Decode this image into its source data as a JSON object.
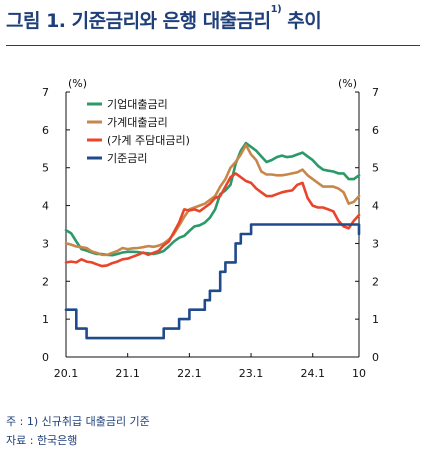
{
  "title": {
    "main": "그림 1. 기준금리와 은행 대출금리",
    "sup": "1)",
    "tail": " 추이"
  },
  "notes": {
    "note1": "주 : 1) 신규취급 대출금리 기준",
    "source": "자료 : 한국은행"
  },
  "chart_data": {
    "type": "line",
    "title": "",
    "xlabel": "",
    "ylabel_left": "(%)",
    "ylabel_right": "(%)",
    "ylim": [
      0,
      7
    ],
    "yticks": [
      "0",
      "1",
      "2",
      "3",
      "4",
      "5",
      "6",
      "7"
    ],
    "x_range": [
      "2020-01",
      "2024-10"
    ],
    "xtick_labels": [
      {
        "date": "2020-01",
        "label": "20.1"
      },
      {
        "date": "2021-01",
        "label": "21.1"
      },
      {
        "date": "2022-01",
        "label": "22.1"
      },
      {
        "date": "2023-01",
        "label": "23.1"
      },
      {
        "date": "2024-01",
        "label": "24.1"
      },
      {
        "date": "2024-10",
        "label": "10"
      }
    ],
    "legend_position": "top-left",
    "series": [
      {
        "name": "기업대출금리",
        "color": "#2a9a6a",
        "step": false,
        "points": [
          [
            "2020-01",
            3.35
          ],
          [
            "2020-02",
            3.27
          ],
          [
            "2020-03",
            3.05
          ],
          [
            "2020-04",
            2.85
          ],
          [
            "2020-05",
            2.81
          ],
          [
            "2020-06",
            2.76
          ],
          [
            "2020-07",
            2.72
          ],
          [
            "2020-08",
            2.72
          ],
          [
            "2020-09",
            2.7
          ],
          [
            "2020-10",
            2.69
          ],
          [
            "2020-11",
            2.72
          ],
          [
            "2020-12",
            2.76
          ],
          [
            "2021-01",
            2.78
          ],
          [
            "2021-02",
            2.78
          ],
          [
            "2021-03",
            2.77
          ],
          [
            "2021-04",
            2.75
          ],
          [
            "2021-05",
            2.74
          ],
          [
            "2021-06",
            2.72
          ],
          [
            "2021-07",
            2.75
          ],
          [
            "2021-08",
            2.8
          ],
          [
            "2021-09",
            2.92
          ],
          [
            "2021-10",
            3.05
          ],
          [
            "2021-11",
            3.15
          ],
          [
            "2021-12",
            3.2
          ],
          [
            "2022-01",
            3.33
          ],
          [
            "2022-02",
            3.45
          ],
          [
            "2022-03",
            3.48
          ],
          [
            "2022-04",
            3.55
          ],
          [
            "2022-05",
            3.68
          ],
          [
            "2022-06",
            3.9
          ],
          [
            "2022-07",
            4.3
          ],
          [
            "2022-08",
            4.4
          ],
          [
            "2022-09",
            4.55
          ],
          [
            "2022-10",
            5.1
          ],
          [
            "2022-11",
            5.45
          ],
          [
            "2022-12",
            5.65
          ],
          [
            "2023-01",
            5.55
          ],
          [
            "2023-02",
            5.45
          ],
          [
            "2023-03",
            5.3
          ],
          [
            "2023-04",
            5.15
          ],
          [
            "2023-05",
            5.2
          ],
          [
            "2023-06",
            5.28
          ],
          [
            "2023-07",
            5.32
          ],
          [
            "2023-08",
            5.28
          ],
          [
            "2023-09",
            5.3
          ],
          [
            "2023-10",
            5.35
          ],
          [
            "2023-11",
            5.4
          ],
          [
            "2023-12",
            5.3
          ],
          [
            "2024-01",
            5.2
          ],
          [
            "2024-02",
            5.05
          ],
          [
            "2024-03",
            4.95
          ],
          [
            "2024-04",
            4.92
          ],
          [
            "2024-05",
            4.9
          ],
          [
            "2024-06",
            4.85
          ],
          [
            "2024-07",
            4.85
          ],
          [
            "2024-08",
            4.7
          ],
          [
            "2024-09",
            4.7
          ],
          [
            "2024-10",
            4.8
          ]
        ]
      },
      {
        "name": "가계대출금리",
        "color": "#c8874a",
        "step": false,
        "points": [
          [
            "2020-01",
            3.0
          ],
          [
            "2020-02",
            2.97
          ],
          [
            "2020-03",
            2.92
          ],
          [
            "2020-04",
            2.9
          ],
          [
            "2020-05",
            2.88
          ],
          [
            "2020-06",
            2.79
          ],
          [
            "2020-07",
            2.75
          ],
          [
            "2020-08",
            2.7
          ],
          [
            "2020-09",
            2.7
          ],
          [
            "2020-10",
            2.75
          ],
          [
            "2020-11",
            2.8
          ],
          [
            "2020-12",
            2.88
          ],
          [
            "2021-01",
            2.85
          ],
          [
            "2021-02",
            2.87
          ],
          [
            "2021-03",
            2.88
          ],
          [
            "2021-04",
            2.9
          ],
          [
            "2021-05",
            2.93
          ],
          [
            "2021-06",
            2.91
          ],
          [
            "2021-07",
            2.94
          ],
          [
            "2021-08",
            3.0
          ],
          [
            "2021-09",
            3.1
          ],
          [
            "2021-10",
            3.25
          ],
          [
            "2021-11",
            3.47
          ],
          [
            "2021-12",
            3.7
          ],
          [
            "2022-01",
            3.9
          ],
          [
            "2022-02",
            3.95
          ],
          [
            "2022-03",
            4.0
          ],
          [
            "2022-04",
            4.05
          ],
          [
            "2022-05",
            4.15
          ],
          [
            "2022-06",
            4.25
          ],
          [
            "2022-07",
            4.5
          ],
          [
            "2022-08",
            4.7
          ],
          [
            "2022-09",
            5.0
          ],
          [
            "2022-10",
            5.15
          ],
          [
            "2022-11",
            5.35
          ],
          [
            "2022-12",
            5.6
          ],
          [
            "2023-01",
            5.35
          ],
          [
            "2023-02",
            5.2
          ],
          [
            "2023-03",
            4.9
          ],
          [
            "2023-04",
            4.82
          ],
          [
            "2023-05",
            4.82
          ],
          [
            "2023-06",
            4.8
          ],
          [
            "2023-07",
            4.8
          ],
          [
            "2023-08",
            4.82
          ],
          [
            "2023-09",
            4.85
          ],
          [
            "2023-10",
            4.88
          ],
          [
            "2023-11",
            4.95
          ],
          [
            "2023-12",
            4.8
          ],
          [
            "2024-01",
            4.7
          ],
          [
            "2024-02",
            4.6
          ],
          [
            "2024-03",
            4.5
          ],
          [
            "2024-04",
            4.5
          ],
          [
            "2024-05",
            4.5
          ],
          [
            "2024-06",
            4.45
          ],
          [
            "2024-07",
            4.35
          ],
          [
            "2024-08",
            4.05
          ],
          [
            "2024-09",
            4.1
          ],
          [
            "2024-10",
            4.25
          ]
        ]
      },
      {
        "name": "(가계 주담대금리)",
        "color": "#e8452a",
        "step": false,
        "points": [
          [
            "2020-01",
            2.5
          ],
          [
            "2020-02",
            2.52
          ],
          [
            "2020-03",
            2.5
          ],
          [
            "2020-04",
            2.58
          ],
          [
            "2020-05",
            2.52
          ],
          [
            "2020-06",
            2.5
          ],
          [
            "2020-07",
            2.45
          ],
          [
            "2020-08",
            2.4
          ],
          [
            "2020-09",
            2.42
          ],
          [
            "2020-10",
            2.48
          ],
          [
            "2020-11",
            2.52
          ],
          [
            "2020-12",
            2.58
          ],
          [
            "2021-01",
            2.6
          ],
          [
            "2021-02",
            2.65
          ],
          [
            "2021-03",
            2.7
          ],
          [
            "2021-04",
            2.76
          ],
          [
            "2021-05",
            2.7
          ],
          [
            "2021-06",
            2.75
          ],
          [
            "2021-07",
            2.8
          ],
          [
            "2021-08",
            2.95
          ],
          [
            "2021-09",
            3.05
          ],
          [
            "2021-10",
            3.3
          ],
          [
            "2021-11",
            3.55
          ],
          [
            "2021-12",
            3.9
          ],
          [
            "2022-01",
            3.87
          ],
          [
            "2022-02",
            3.9
          ],
          [
            "2022-03",
            3.85
          ],
          [
            "2022-04",
            3.95
          ],
          [
            "2022-05",
            4.05
          ],
          [
            "2022-06",
            4.2
          ],
          [
            "2022-07",
            4.25
          ],
          [
            "2022-08",
            4.5
          ],
          [
            "2022-09",
            4.75
          ],
          [
            "2022-10",
            4.85
          ],
          [
            "2022-11",
            4.75
          ],
          [
            "2022-12",
            4.65
          ],
          [
            "2023-01",
            4.6
          ],
          [
            "2023-02",
            4.45
          ],
          [
            "2023-03",
            4.35
          ],
          [
            "2023-04",
            4.25
          ],
          [
            "2023-05",
            4.25
          ],
          [
            "2023-06",
            4.3
          ],
          [
            "2023-07",
            4.35
          ],
          [
            "2023-08",
            4.38
          ],
          [
            "2023-09",
            4.4
          ],
          [
            "2023-10",
            4.55
          ],
          [
            "2023-11",
            4.6
          ],
          [
            "2023-12",
            4.2
          ],
          [
            "2024-01",
            4.0
          ],
          [
            "2024-02",
            3.95
          ],
          [
            "2024-03",
            3.95
          ],
          [
            "2024-04",
            3.9
          ],
          [
            "2024-05",
            3.85
          ],
          [
            "2024-06",
            3.6
          ],
          [
            "2024-07",
            3.45
          ],
          [
            "2024-08",
            3.4
          ],
          [
            "2024-09",
            3.6
          ],
          [
            "2024-10",
            3.75
          ]
        ]
      },
      {
        "name": "기준금리",
        "color": "#1f4a8c",
        "step": true,
        "points": [
          [
            "2020-01",
            1.25
          ],
          [
            "2020-03",
            0.75
          ],
          [
            "2020-05",
            0.5
          ],
          [
            "2021-08",
            0.75
          ],
          [
            "2021-11",
            1.0
          ],
          [
            "2022-01",
            1.25
          ],
          [
            "2022-04",
            1.5
          ],
          [
            "2022-05",
            1.75
          ],
          [
            "2022-07",
            2.25
          ],
          [
            "2022-08",
            2.5
          ],
          [
            "2022-10",
            3.0
          ],
          [
            "2022-11",
            3.25
          ],
          [
            "2023-01",
            3.5
          ],
          [
            "2024-10",
            3.25
          ]
        ]
      }
    ]
  }
}
